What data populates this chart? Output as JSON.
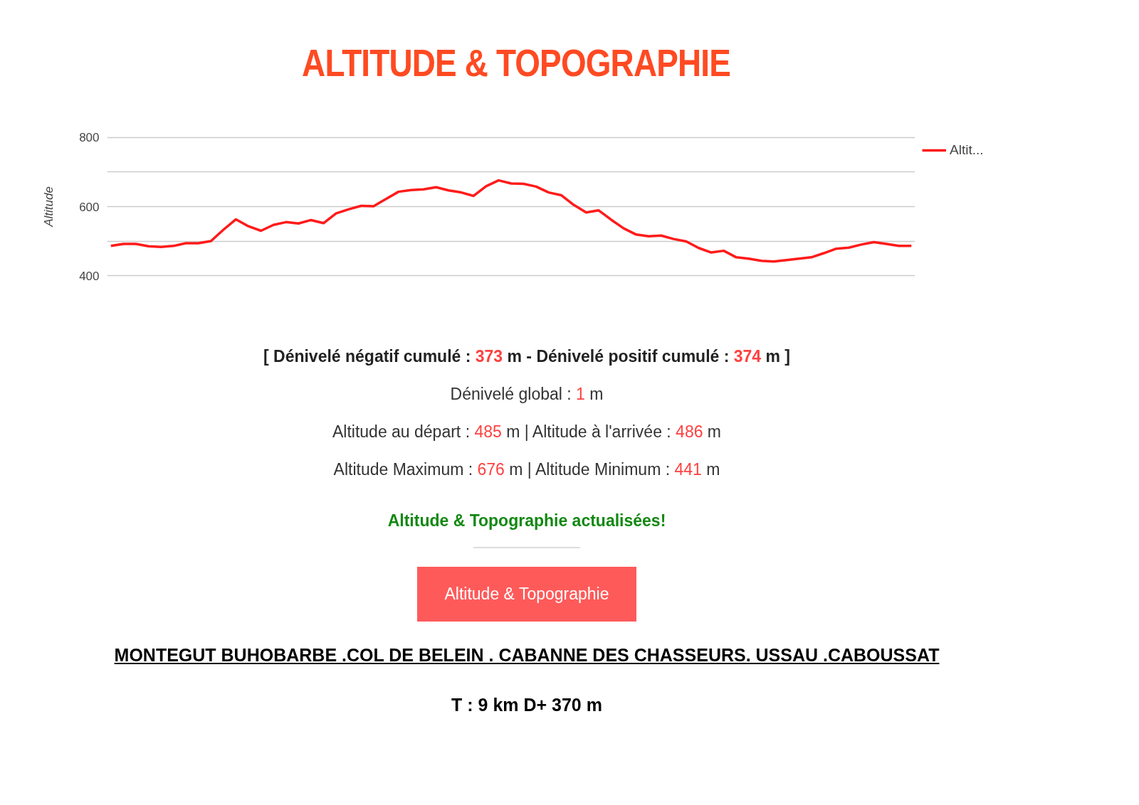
{
  "chart_data": {
    "type": "line",
    "title": "ALTITUDE & TOPOGRAPHIE",
    "ylabel": "Altitude",
    "categories": [
      null,
      null,
      null,
      null,
      null,
      null,
      null,
      null,
      null,
      null,
      null,
      null,
      null,
      null,
      null,
      null,
      null,
      null,
      null,
      null,
      null,
      null,
      null,
      null,
      null,
      null,
      null,
      null,
      null,
      null,
      null,
      null,
      null,
      null,
      null,
      null,
      null,
      null,
      null,
      null,
      null,
      null,
      null,
      null,
      null,
      null,
      null,
      null,
      null,
      null,
      null,
      null,
      null,
      null,
      null,
      null,
      null,
      null,
      null,
      null,
      null,
      null,
      null,
      null,
      null
    ],
    "series": [
      {
        "name": "Altit...",
        "color": "#ff1a1a",
        "values": [
          486,
          492,
          492,
          485,
          483,
          486,
          494,
          494,
          500,
          533,
          563,
          543,
          530,
          547,
          555,
          551,
          561,
          552,
          580,
          592,
          602,
          601,
          622,
          643,
          648,
          650,
          656,
          647,
          641,
          631,
          659,
          676,
          667,
          666,
          658,
          641,
          633,
          605,
          583,
          589,
          562,
          537,
          519,
          514,
          516,
          506,
          499,
          480,
          467,
          472,
          453,
          449,
          443,
          441,
          445,
          449,
          453,
          465,
          478,
          481,
          490,
          497,
          492,
          486,
          486
        ]
      }
    ],
    "ylim": [
      400,
      800
    ],
    "yticks": [
      400,
      {
        "value": 500,
        "label": null
      },
      600,
      {
        "value": 700,
        "label": null
      },
      800
    ],
    "grid": "y",
    "legend": "top right",
    "tick_labels": "y",
    "marker": "none",
    "line_style": "solid",
    "annotations": [
      "[ Dénivelé négatif cumulé : 373 m - Dénivelé positif cumulé : 374  m ]",
      "Dénivelé global : 1  m",
      "Altitude au départ : 485  m | Altitude à l'arrivée : 486  m",
      "Altitude Maximum : 676  m | Altitude Minimum : 441  m",
      "Altitude & Topographie actualisées!",
      "Altitude & Topographie",
      "MONTEGUT  BUHOBARBE  .COL DE BELEIN . CABANNE DES CHASSEURS. USSAU .CABOUSSAT",
      "T : 9 km   D+ 370 m"
    ]
  }
}
